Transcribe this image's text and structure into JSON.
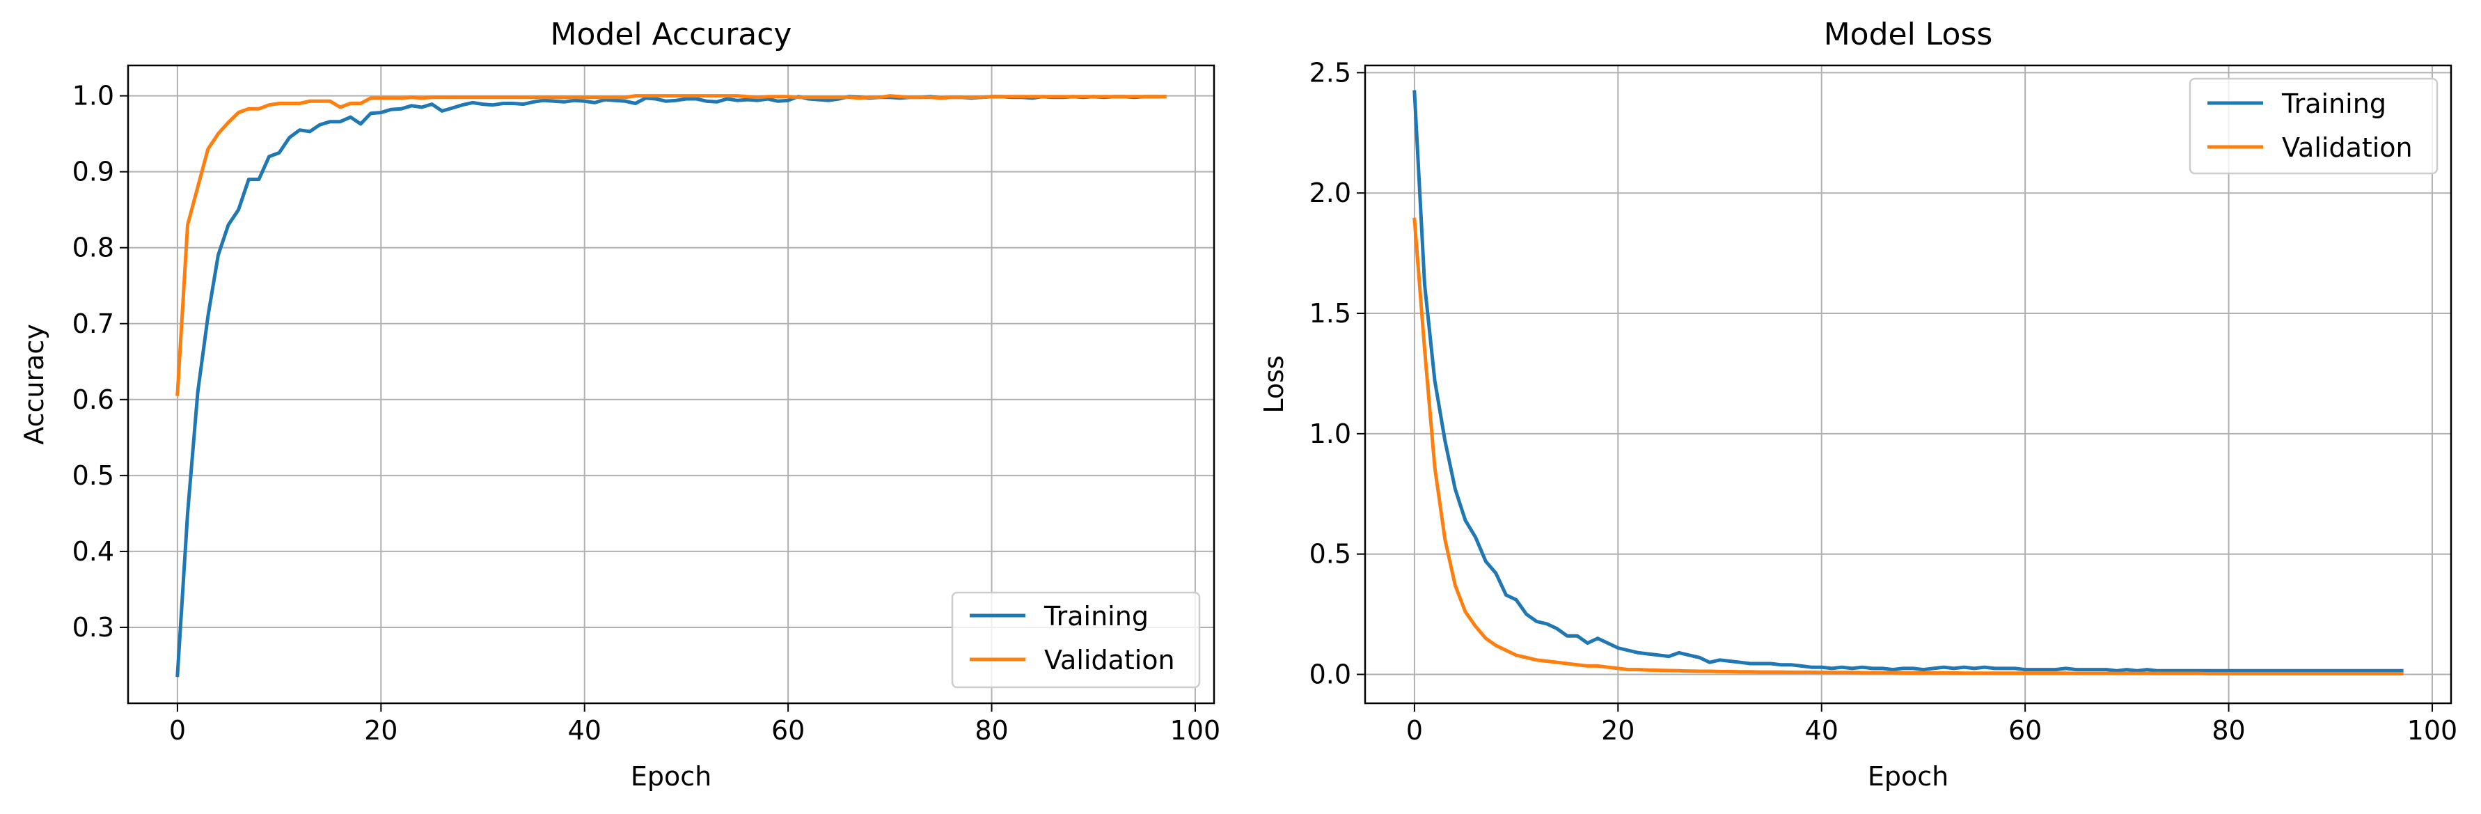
{
  "chart_data": [
    {
      "type": "line",
      "title": "Model Accuracy",
      "xlabel": "Epoch",
      "ylabel": "Accuracy",
      "xlim": [
        -4.85,
        101.85
      ],
      "ylim": [
        0.2,
        1.04
      ],
      "xticks": [
        0,
        20,
        40,
        60,
        80,
        100
      ],
      "yticks": [
        0.3,
        0.4,
        0.5,
        0.6,
        0.7,
        0.8,
        0.9,
        1.0
      ],
      "grid": true,
      "legend_position": "lower-right",
      "series": [
        {
          "name": "Training",
          "color": "#1f77b4",
          "values": [
            0.237,
            0.45,
            0.61,
            0.71,
            0.79,
            0.83,
            0.85,
            0.89,
            0.89,
            0.92,
            0.925,
            0.945,
            0.955,
            0.953,
            0.962,
            0.966,
            0.966,
            0.972,
            0.963,
            0.977,
            0.978,
            0.982,
            0.983,
            0.987,
            0.985,
            0.989,
            0.98,
            0.984,
            0.988,
            0.991,
            0.989,
            0.988,
            0.99,
            0.99,
            0.989,
            0.992,
            0.994,
            0.993,
            0.992,
            0.994,
            0.993,
            0.991,
            0.995,
            0.994,
            0.993,
            0.99,
            0.997,
            0.996,
            0.993,
            0.994,
            0.996,
            0.996,
            0.993,
            0.992,
            0.996,
            0.994,
            0.995,
            0.994,
            0.996,
            0.993,
            0.994,
            0.999,
            0.996,
            0.995,
            0.994,
            0.996,
            0.999,
            0.998,
            0.997,
            0.998,
            0.998,
            0.997,
            0.998,
            0.998,
            0.999,
            0.997,
            0.998,
            0.998,
            0.997,
            0.998,
            0.999,
            0.999,
            0.998,
            0.998,
            0.997,
            0.999,
            0.998,
            0.998,
            0.999,
            0.998,
            0.999,
            0.998,
            0.999,
            0.999,
            0.998,
            0.999,
            0.999,
            0.999
          ]
        },
        {
          "name": "Validation",
          "color": "#ff7f0e",
          "values": [
            0.607,
            0.83,
            0.88,
            0.93,
            0.95,
            0.965,
            0.978,
            0.983,
            0.983,
            0.988,
            0.99,
            0.99,
            0.99,
            0.993,
            0.993,
            0.993,
            0.985,
            0.99,
            0.99,
            0.997,
            0.997,
            0.997,
            0.997,
            0.998,
            0.997,
            0.998,
            0.998,
            0.998,
            0.998,
            0.998,
            0.998,
            0.998,
            0.998,
            0.998,
            0.998,
            0.998,
            0.998,
            0.998,
            0.998,
            0.998,
            0.998,
            0.998,
            0.998,
            0.998,
            0.998,
            1.0,
            1.0,
            1.0,
            1.0,
            1.0,
            1.0,
            1.0,
            1.0,
            1.0,
            1.0,
            1.0,
            0.999,
            0.998,
            0.999,
            0.999,
            0.999,
            0.998,
            0.998,
            0.998,
            0.998,
            0.998,
            0.998,
            0.997,
            0.998,
            0.998,
            1.0,
            0.999,
            0.998,
            0.998,
            0.998,
            0.997,
            0.998,
            0.998,
            0.998,
            0.998,
            0.999,
            0.999,
            0.999,
            0.999,
            0.999,
            0.999,
            0.999,
            0.999,
            0.999,
            0.999,
            0.999,
            0.999,
            0.999,
            0.999,
            0.999,
            0.999,
            0.999,
            0.999
          ]
        }
      ]
    },
    {
      "type": "line",
      "title": "Model Loss",
      "xlabel": "Epoch",
      "ylabel": "Loss",
      "xlim": [
        -4.85,
        101.85
      ],
      "ylim": [
        -0.12,
        2.53
      ],
      "xticks": [
        0,
        20,
        40,
        60,
        80,
        100
      ],
      "yticks": [
        0.0,
        0.5,
        1.0,
        1.5,
        2.0,
        2.5
      ],
      "ytick_labels": [
        "0.0",
        "0.5",
        "1.0",
        "1.5",
        "2.0",
        "2.5"
      ],
      "grid": true,
      "legend_position": "upper-right",
      "series": [
        {
          "name": "Training",
          "color": "#1f77b4",
          "values": [
            2.42,
            1.62,
            1.22,
            0.97,
            0.77,
            0.64,
            0.57,
            0.47,
            0.42,
            0.33,
            0.31,
            0.25,
            0.22,
            0.21,
            0.19,
            0.16,
            0.16,
            0.13,
            0.15,
            0.13,
            0.11,
            0.1,
            0.09,
            0.085,
            0.08,
            0.075,
            0.09,
            0.08,
            0.07,
            0.05,
            0.06,
            0.055,
            0.05,
            0.045,
            0.045,
            0.045,
            0.04,
            0.04,
            0.035,
            0.03,
            0.03,
            0.025,
            0.03,
            0.025,
            0.03,
            0.025,
            0.025,
            0.02,
            0.025,
            0.025,
            0.02,
            0.025,
            0.03,
            0.025,
            0.03,
            0.025,
            0.03,
            0.025,
            0.025,
            0.025,
            0.02,
            0.02,
            0.02,
            0.02,
            0.025,
            0.02,
            0.02,
            0.02,
            0.02,
            0.015,
            0.02,
            0.015,
            0.02,
            0.015,
            0.015,
            0.015,
            0.015,
            0.015,
            0.015,
            0.015,
            0.015,
            0.015,
            0.015,
            0.015,
            0.015,
            0.015,
            0.015,
            0.015,
            0.015,
            0.015,
            0.015,
            0.015,
            0.015,
            0.015,
            0.015,
            0.015,
            0.015,
            0.015
          ]
        },
        {
          "name": "Validation",
          "color": "#ff7f0e",
          "values": [
            1.89,
            1.35,
            0.86,
            0.56,
            0.37,
            0.26,
            0.2,
            0.15,
            0.12,
            0.1,
            0.08,
            0.07,
            0.06,
            0.055,
            0.05,
            0.045,
            0.04,
            0.035,
            0.035,
            0.03,
            0.025,
            0.02,
            0.02,
            0.018,
            0.017,
            0.016,
            0.015,
            0.014,
            0.013,
            0.013,
            0.012,
            0.012,
            0.011,
            0.011,
            0.01,
            0.01,
            0.01,
            0.009,
            0.009,
            0.009,
            0.008,
            0.008,
            0.008,
            0.008,
            0.007,
            0.007,
            0.007,
            0.007,
            0.006,
            0.006,
            0.006,
            0.006,
            0.006,
            0.006,
            0.005,
            0.005,
            0.005,
            0.005,
            0.005,
            0.005,
            0.005,
            0.005,
            0.005,
            0.005,
            0.005,
            0.004,
            0.004,
            0.004,
            0.004,
            0.004,
            0.004,
            0.004,
            0.004,
            0.004,
            0.004,
            0.004,
            0.004,
            0.004,
            0.003,
            0.003,
            0.003,
            0.003,
            0.003,
            0.003,
            0.003,
            0.003,
            0.003,
            0.003,
            0.003,
            0.003,
            0.003,
            0.003,
            0.003,
            0.003,
            0.003,
            0.003,
            0.003,
            0.003
          ]
        }
      ]
    }
  ]
}
